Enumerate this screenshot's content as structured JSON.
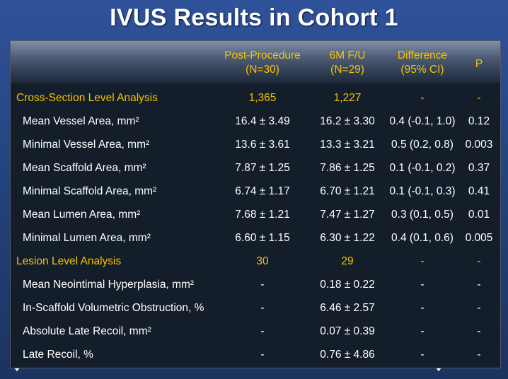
{
  "title": "IVUS Results in Cohort 1",
  "columns": [
    [
      "Post-Procedure",
      "(N=30)"
    ],
    [
      "6M F/U",
      "(N=29)"
    ],
    [
      "Difference",
      "(95% CI)"
    ],
    [
      "P"
    ]
  ],
  "sections": [
    {
      "title": "Cross-Section Level Analysis",
      "cells": [
        "1,365",
        "1,227",
        "-",
        "-"
      ],
      "rows": [
        {
          "label": "Mean Vessel Area, mm²",
          "cells": [
            "16.4 ± 3.49",
            "16.2 ± 3.30",
            "0.4 (-0.1, 1.0)",
            "0.12"
          ]
        },
        {
          "label": "Minimal Vessel Area, mm²",
          "cells": [
            "13.6 ± 3.61",
            "13.3 ± 3.21",
            "0.5 (0.2, 0.8)",
            "0.003"
          ]
        },
        {
          "label": "Mean Scaffold Area, mm²",
          "cells": [
            "7.87 ± 1.25",
            "7.86 ± 1.25",
            "0.1 (-0.1, 0.2)",
            "0.37"
          ]
        },
        {
          "label": "Minimal Scaffold Area, mm²",
          "cells": [
            "6.74 ± 1.17",
            "6.70 ± 1.21",
            "0.1 (-0.1, 0.3)",
            "0.41"
          ]
        },
        {
          "label": "Mean Lumen Area, mm²",
          "cells": [
            "7.68 ± 1.21",
            "7.47 ± 1.27",
            "0.3 (0.1, 0.5)",
            "0.01"
          ]
        },
        {
          "label": "Minimal Lumen Area, mm²",
          "cells": [
            "6.60 ± 1.15",
            "6.30 ± 1.22",
            "0.4 (0.1, 0.6)",
            "0.005"
          ]
        }
      ]
    },
    {
      "title": "Lesion Level Analysis",
      "cells": [
        "30",
        "29",
        "-",
        "-"
      ],
      "rows": [
        {
          "label": "Mean Neointimal Hyperplasia, mm²",
          "cells": [
            "-",
            "0.18 ± 0.22",
            "-",
            "-"
          ]
        },
        {
          "label": "In-Scaffold Volumetric Obstruction, %",
          "cells": [
            "-",
            "6.46 ± 2.57",
            "-",
            "-"
          ]
        },
        {
          "label": "Absolute Late Recoil, mm²",
          "cells": [
            "-",
            "0.07 ± 0.39",
            "-",
            "-"
          ]
        },
        {
          "label": "Late Recoil, %",
          "cells": [
            "-",
            "0.76 ± 4.86",
            "-",
            "-"
          ]
        }
      ]
    }
  ]
}
